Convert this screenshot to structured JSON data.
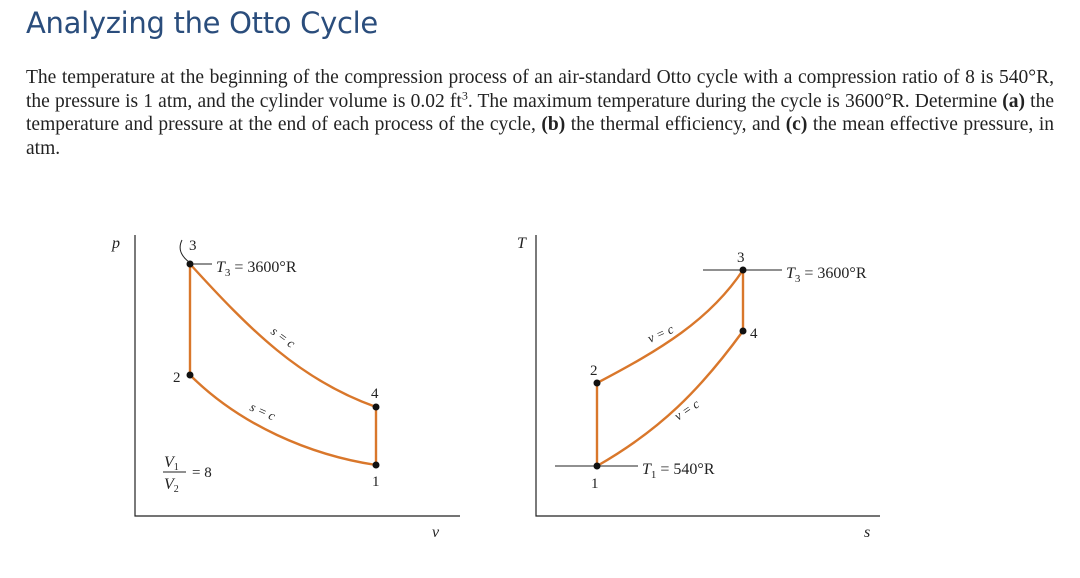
{
  "title": "Analyzing the Otto Cycle",
  "problem": {
    "part1": "The temperature at the beginning of the compression process of an air-standard Otto cycle with a compression ratio of 8 is 540°R, the pressure is 1 atm, and the cylinder volume is 0.02 ft",
    "sup": "3",
    "part2": ". The maximum temperature during the cycle is 3600°R. Determine ",
    "a_label": "(a)",
    "part3": " the temperature and pressure at the end of each process of the cycle, ",
    "b_label": "(b)",
    "part4": " the thermal efficiency, and ",
    "c_label": "(c)",
    "part5": " the mean effective pressure, in atm."
  },
  "pv_diagram": {
    "y_axis": "p",
    "x_axis": "v",
    "state_labels": [
      "1",
      "2",
      "3",
      "4"
    ],
    "t3_label": "T",
    "t3_sub": "3",
    "t3_value": " = 3600°R",
    "isentrope_label_upper": "s = c",
    "isentrope_label_lower": "s = c",
    "ratio_num": "V",
    "ratio_num_sub": "1",
    "ratio_den": "V",
    "ratio_den_sub": "2",
    "ratio_value": "= 8"
  },
  "ts_diagram": {
    "y_axis": "T",
    "x_axis": "s",
    "state_labels": [
      "1",
      "2",
      "3",
      "4"
    ],
    "t3_label": "T",
    "t3_sub": "3",
    "t3_value": " = 3600°R",
    "t1_label": "T",
    "t1_sub": "1",
    "t1_value": " = 540°R",
    "isochore_label_upper": "v = c",
    "isochore_label_lower": "v = c"
  },
  "colors": {
    "title": "#2a4d7c",
    "process_line": "#d9772b",
    "axis": "#222222"
  }
}
